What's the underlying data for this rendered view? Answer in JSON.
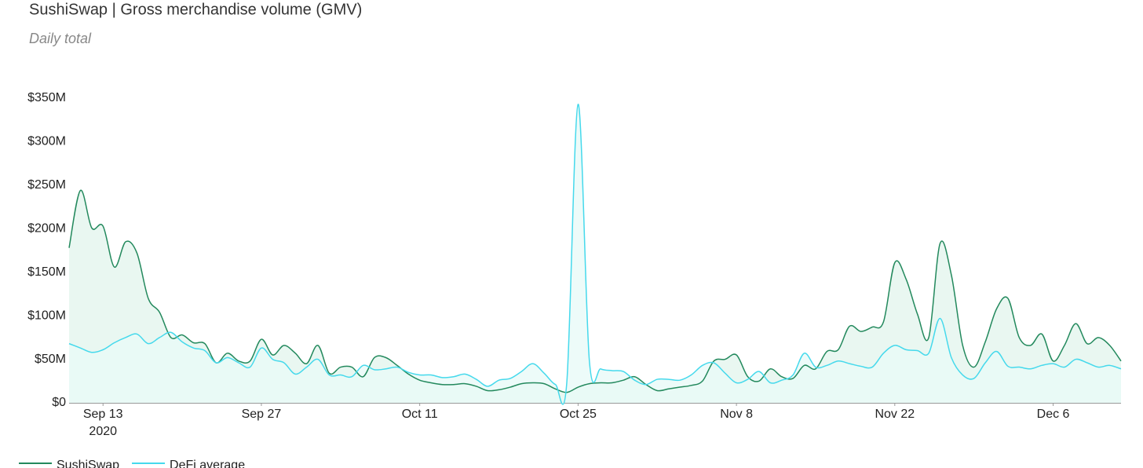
{
  "chart_data": {
    "type": "area",
    "title": "SushiSwap | Gross merchandise volume (GMV)",
    "subtitle": "Daily total",
    "x": [
      "2020-09-10",
      "2020-09-11",
      "2020-09-12",
      "2020-09-13",
      "2020-09-14",
      "2020-09-15",
      "2020-09-16",
      "2020-09-17",
      "2020-09-18",
      "2020-09-19",
      "2020-09-20",
      "2020-09-21",
      "2020-09-22",
      "2020-09-23",
      "2020-09-24",
      "2020-09-25",
      "2020-09-26",
      "2020-09-27",
      "2020-09-28",
      "2020-09-29",
      "2020-09-30",
      "2020-10-01",
      "2020-10-02",
      "2020-10-03",
      "2020-10-04",
      "2020-10-05",
      "2020-10-06",
      "2020-10-07",
      "2020-10-08",
      "2020-10-09",
      "2020-10-10",
      "2020-10-11",
      "2020-10-12",
      "2020-10-13",
      "2020-10-14",
      "2020-10-15",
      "2020-10-16",
      "2020-10-17",
      "2020-10-18",
      "2020-10-19",
      "2020-10-20",
      "2020-10-21",
      "2020-10-22",
      "2020-10-23",
      "2020-10-24",
      "2020-10-25",
      "2020-10-26",
      "2020-10-27",
      "2020-10-28",
      "2020-10-29",
      "2020-10-30",
      "2020-10-31",
      "2020-11-01",
      "2020-11-02",
      "2020-11-03",
      "2020-11-04",
      "2020-11-05",
      "2020-11-06",
      "2020-11-07",
      "2020-11-08",
      "2020-11-09",
      "2020-11-10",
      "2020-11-11",
      "2020-11-12",
      "2020-11-13",
      "2020-11-14",
      "2020-11-15",
      "2020-11-16",
      "2020-11-17",
      "2020-11-18",
      "2020-11-19",
      "2020-11-20",
      "2020-11-21",
      "2020-11-22",
      "2020-11-23",
      "2020-11-24",
      "2020-11-25",
      "2020-11-26",
      "2020-11-27",
      "2020-11-28",
      "2020-11-29",
      "2020-11-30",
      "2020-12-01",
      "2020-12-02",
      "2020-12-03",
      "2020-12-04",
      "2020-12-05",
      "2020-12-06",
      "2020-12-07",
      "2020-12-08",
      "2020-12-09",
      "2020-12-10",
      "2020-12-11",
      "2020-12-12"
    ],
    "series": [
      {
        "name": "SushiSwap",
        "color": "#23895d",
        "fill": "#e4f5ee",
        "values": [
          178,
          244,
          201,
          203,
          156,
          185,
          172,
          120,
          104,
          75,
          78,
          69,
          68,
          46,
          57,
          48,
          48,
          73,
          55,
          66,
          57,
          45,
          66,
          34,
          41,
          41,
          30,
          52,
          52,
          43,
          33,
          26,
          23,
          21,
          21,
          22,
          19,
          14,
          15,
          18,
          22,
          23,
          22,
          16,
          12,
          18,
          22,
          23,
          23,
          26,
          30,
          21,
          14,
          16,
          18,
          20,
          25,
          48,
          50,
          55,
          30,
          25,
          39,
          30,
          28,
          43,
          39,
          59,
          61,
          88,
          82,
          87,
          93,
          161,
          142,
          102,
          75,
          183,
          147,
          66,
          41,
          70,
          108,
          120,
          75,
          66,
          79,
          48,
          66,
          91,
          68,
          75,
          66,
          48
        ]
      },
      {
        "name": "DeFi average",
        "color": "#45d9ec",
        "fill": "#e8faf8",
        "values": [
          68,
          63,
          58,
          61,
          69,
          75,
          79,
          68,
          75,
          81,
          70,
          63,
          60,
          46,
          52,
          46,
          41,
          63,
          50,
          46,
          33,
          41,
          50,
          32,
          32,
          30,
          43,
          38,
          39,
          41,
          35,
          32,
          32,
          29,
          30,
          33,
          27,
          19,
          26,
          28,
          36,
          45,
          34,
          21,
          23,
          343,
          48,
          39,
          37,
          36,
          26,
          21,
          27,
          27,
          26,
          32,
          43,
          46,
          34,
          23,
          27,
          36,
          23,
          26,
          32,
          57,
          41,
          43,
          48,
          45,
          42,
          41,
          57,
          66,
          61,
          60,
          57,
          97,
          52,
          32,
          28,
          46,
          59,
          42,
          41,
          39,
          43,
          45,
          41,
          50,
          46,
          41,
          43,
          39
        ]
      }
    ],
    "xlim": [
      "2020-09-10",
      "2020-12-12"
    ],
    "xticks": [
      {
        "value": "2020-09-13",
        "label": "Sep 13"
      },
      {
        "value": "2020-09-27",
        "label": "Sep 27"
      },
      {
        "value": "2020-10-11",
        "label": "Oct 11"
      },
      {
        "value": "2020-10-25",
        "label": "Oct 25"
      },
      {
        "value": "2020-11-08",
        "label": "Nov 8"
      },
      {
        "value": "2020-11-22",
        "label": "Nov 22"
      },
      {
        "value": "2020-12-06",
        "label": "Dec 6"
      }
    ],
    "x_year_label": "2020",
    "ylim": [
      0,
      350
    ],
    "yticks": [
      {
        "value": 0,
        "label": "$0"
      },
      {
        "value": 50,
        "label": "$50M"
      },
      {
        "value": 100,
        "label": "$100M"
      },
      {
        "value": 150,
        "label": "$150M"
      },
      {
        "value": 200,
        "label": "$200M"
      },
      {
        "value": 250,
        "label": "$250M"
      },
      {
        "value": 300,
        "label": "$300M"
      },
      {
        "value": 350,
        "label": "$350M"
      }
    ],
    "grid": false,
    "legend": "bottom-left"
  }
}
